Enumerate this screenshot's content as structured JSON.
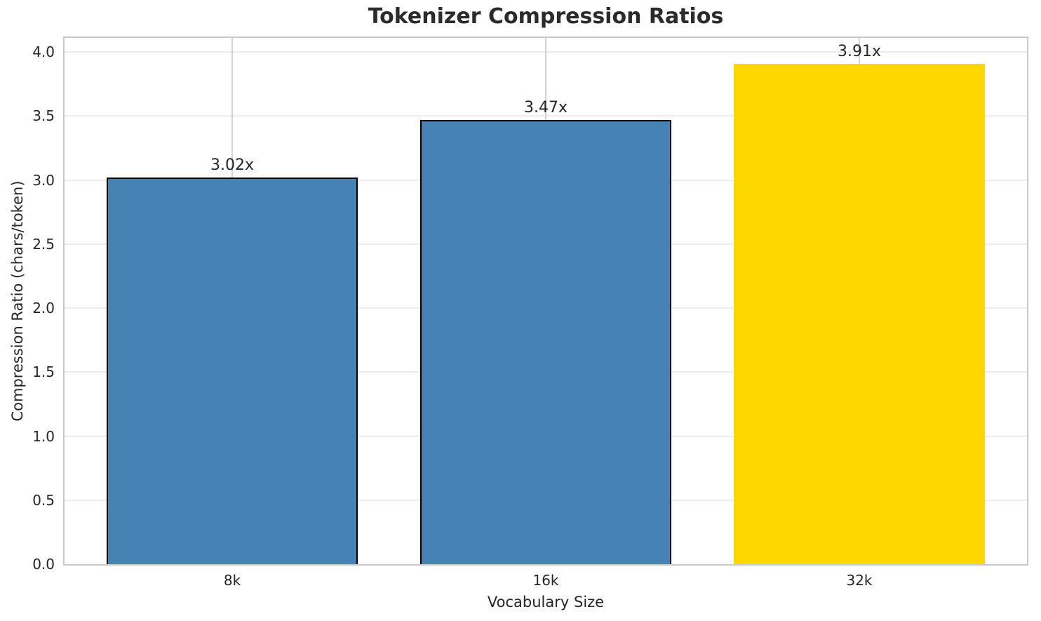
{
  "chart_data": {
    "type": "bar",
    "title": "Tokenizer Compression Ratios",
    "xlabel": "Vocabulary Size",
    "ylabel": "Compression Ratio (chars/token)",
    "categories": [
      "8k",
      "16k",
      "32k"
    ],
    "values": [
      3.02,
      3.47,
      3.91
    ],
    "bar_labels": [
      "3.02x",
      "3.47x",
      "3.91x"
    ],
    "bar_colors": [
      "#4682b4",
      "#4682b4",
      "#ffd700"
    ],
    "bar_edge_colors": [
      "#000000",
      "#000000",
      "none"
    ],
    "ylim": [
      0,
      4.11
    ],
    "yticks": [
      0.0,
      0.5,
      1.0,
      1.5,
      2.0,
      2.5,
      3.0,
      3.5,
      4.0
    ],
    "ytick_labels": [
      "0.0",
      "0.5",
      "1.0",
      "1.5",
      "2.0",
      "2.5",
      "3.0",
      "3.5",
      "4.0"
    ],
    "grid": true,
    "legend": "none"
  },
  "colors": {
    "title_text": "#2b2b2b",
    "tick_text": "#262626",
    "spine": "#c9c9c9",
    "hgrid": "#ececec",
    "vgrid": "#d2d2d2",
    "blue_bar": "#4682b4",
    "gold_bar": "#ffd700",
    "bar_edge": "#000000"
  }
}
